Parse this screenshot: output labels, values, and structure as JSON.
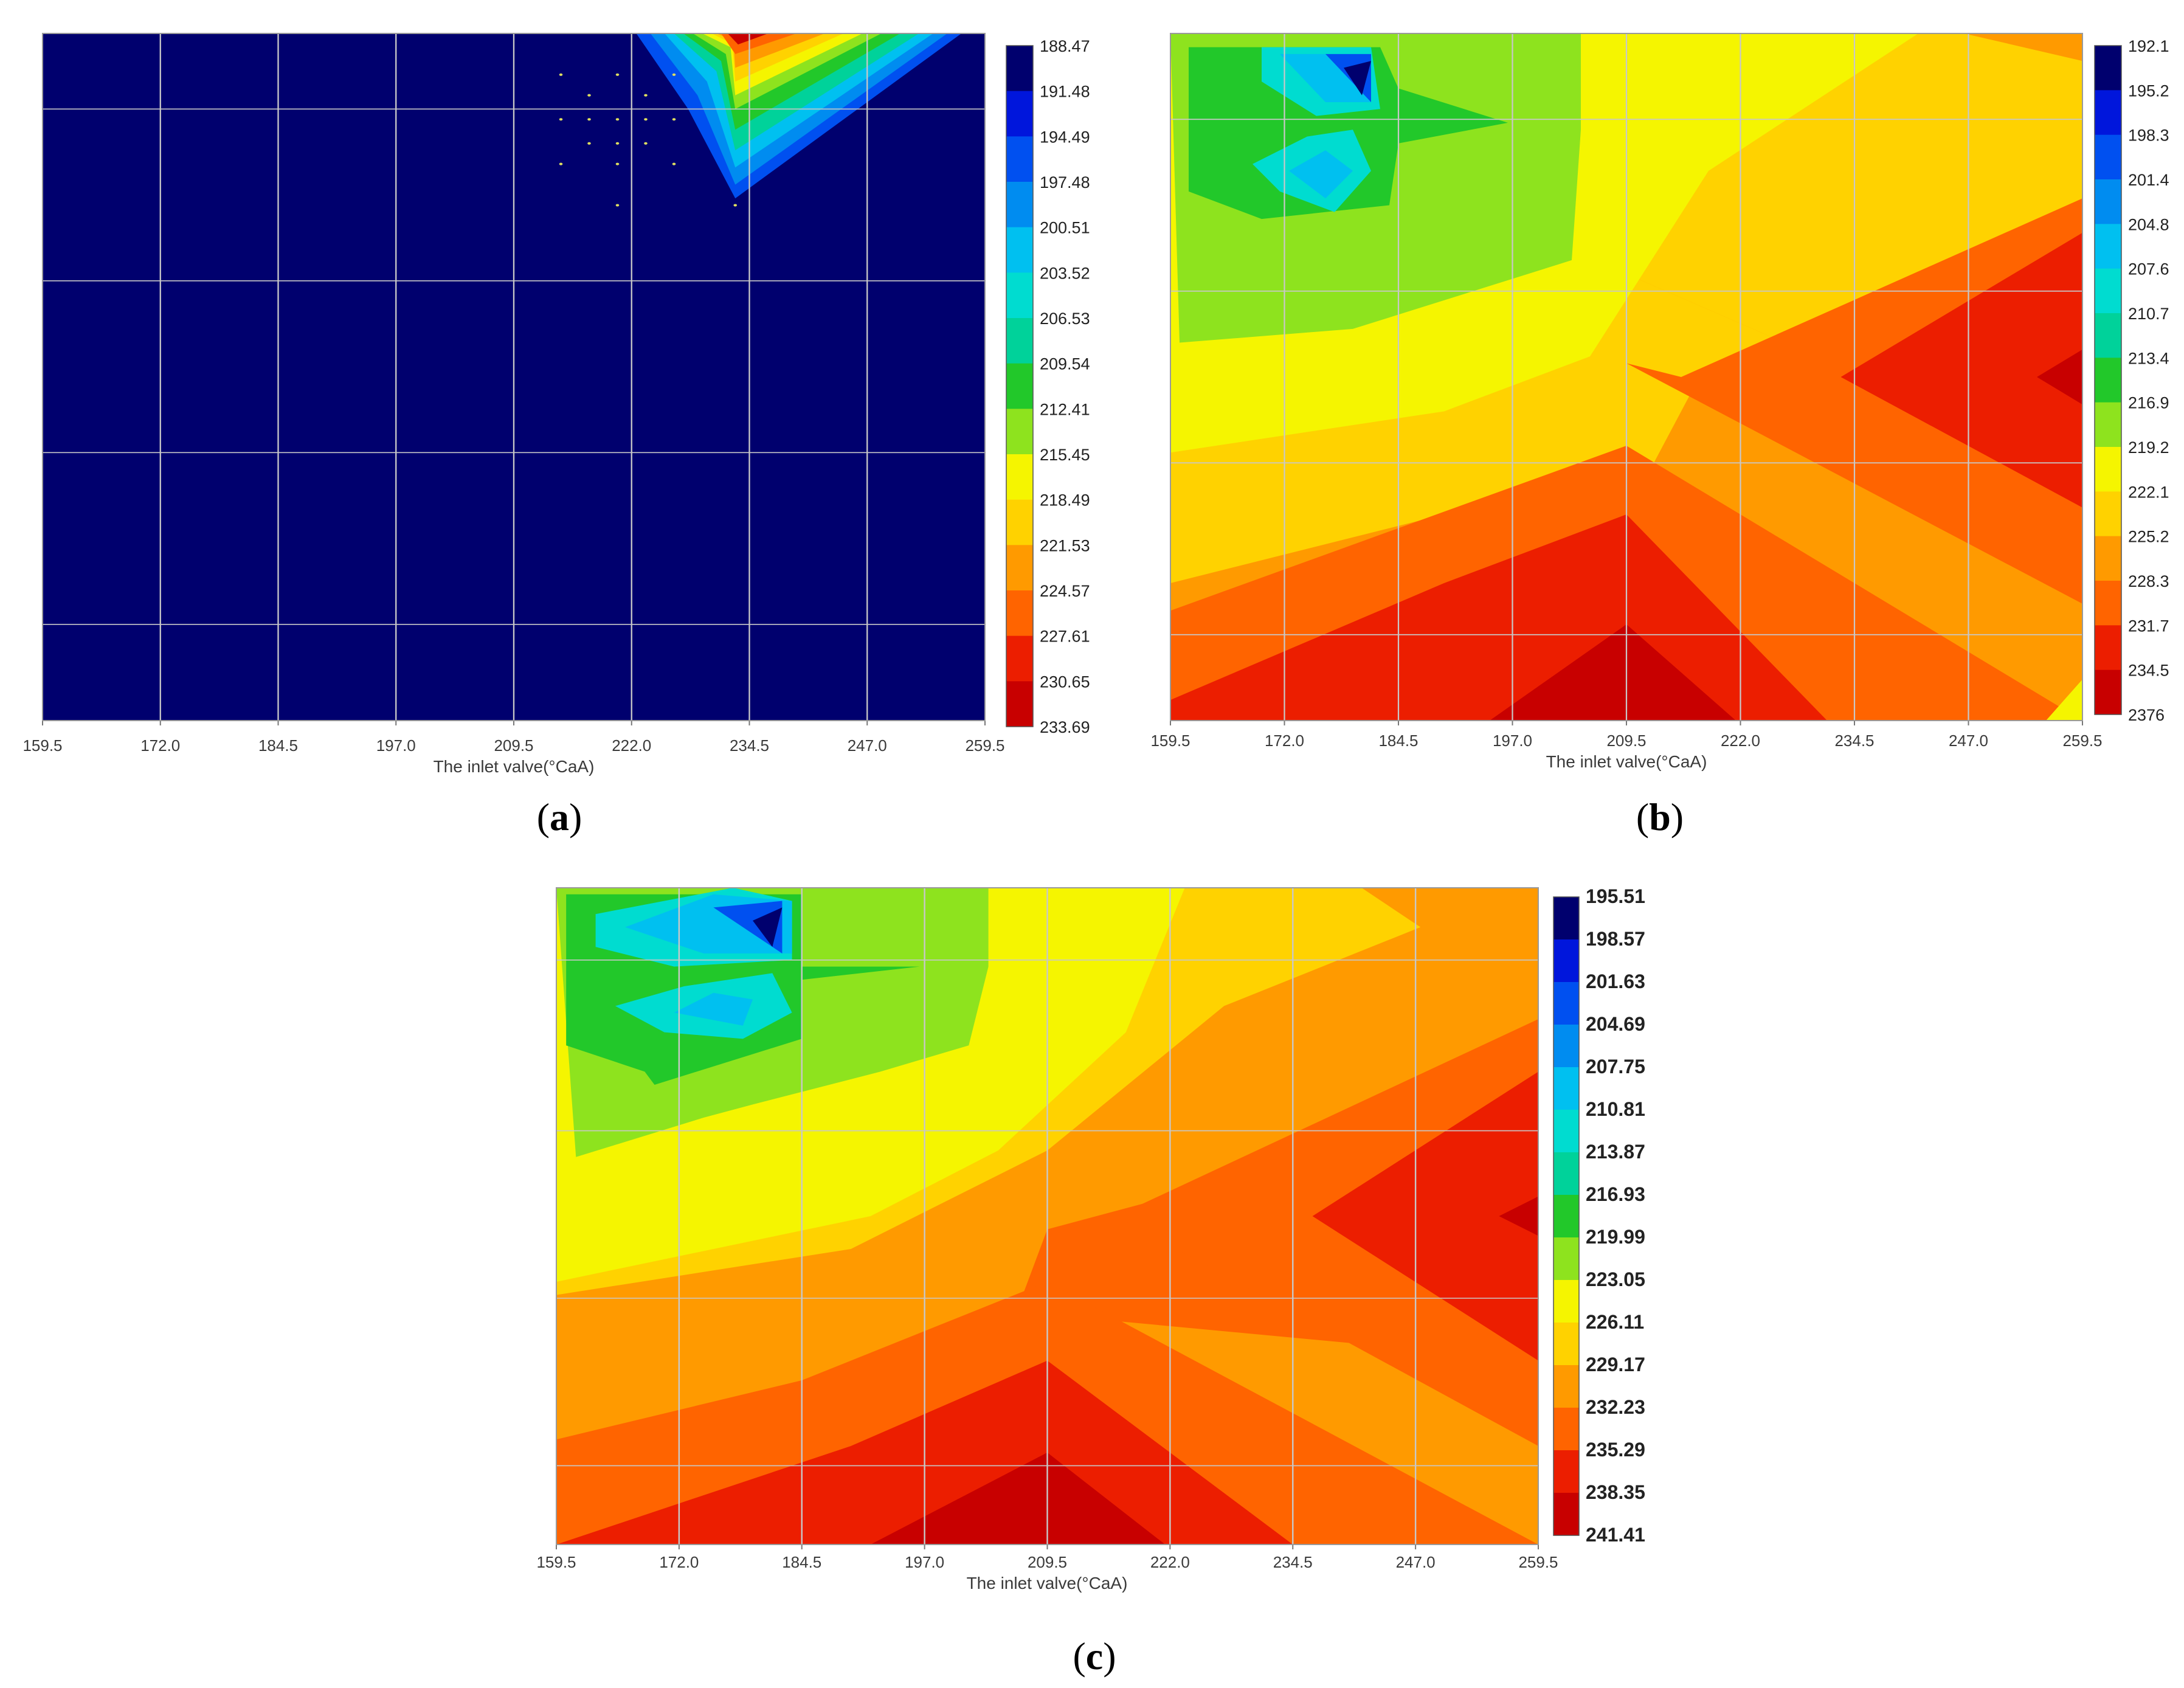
{
  "chart_data": [
    {
      "type": "heatmap",
      "panel": "a",
      "panel_label": "(a)",
      "title": "",
      "xlabel": "The inlet valve(°CaA)",
      "ylabel": "",
      "x_ticks": [
        "159.5",
        "172.0",
        "184.5",
        "197.0",
        "209.5",
        "222.0",
        "234.5",
        "247.0",
        "259.5"
      ],
      "xlim": [
        159.5,
        259.5
      ],
      "grid": true,
      "colorbar_ticks": [
        "188.47",
        "191.48",
        "194.49",
        "197.48",
        "200.51",
        "203.52",
        "206.53",
        "209.54",
        "212.41",
        "215.45",
        "218.49",
        "221.53",
        "224.57",
        "227.61",
        "230.65",
        "233.69"
      ],
      "colors": [
        "#00006e",
        "#0016dc",
        "#0050f0",
        "#008cf0",
        "#00c0f0",
        "#00dcd0",
        "#00d29a",
        "#22c82a",
        "#8ee31e",
        "#f5f500",
        "#ffd200",
        "#ff9a00",
        "#ff6400",
        "#ec1e00",
        "#c80000"
      ],
      "background_color": "#00006e"
    },
    {
      "type": "heatmap",
      "panel": "b",
      "panel_label": "(b)",
      "title": "",
      "xlabel": "The inlet valve(°CaA)",
      "ylabel": "",
      "x_ticks": [
        "159.5",
        "172.0",
        "184.5",
        "197.0",
        "209.5",
        "222.0",
        "234.5",
        "247.0",
        "259.5"
      ],
      "xlim": [
        159.5,
        259.5
      ],
      "grid": true,
      "colorbar_ticks": [
        "192.1",
        "195.2",
        "198.3",
        "201.4",
        "204.8",
        "207.6",
        "210.7",
        "213.4",
        "216.9",
        "219.2",
        "222.1",
        "225.2",
        "228.3",
        "231.7",
        "234.5",
        "2376"
      ],
      "colors": [
        "#00006e",
        "#0016dc",
        "#0050f0",
        "#008cf0",
        "#00c0f0",
        "#00dcd0",
        "#00d29a",
        "#22c82a",
        "#8ee31e",
        "#f5f500",
        "#ffd200",
        "#ff9a00",
        "#ff6400",
        "#ec1e00",
        "#c80000"
      ]
    },
    {
      "type": "heatmap",
      "panel": "c",
      "panel_label": "(c)",
      "title": "",
      "xlabel": "The inlet valve(°CaA)",
      "ylabel": "",
      "x_ticks": [
        "159.5",
        "172.0",
        "184.5",
        "197.0",
        "209.5",
        "222.0",
        "234.5",
        "247.0",
        "259.5"
      ],
      "xlim": [
        159.5,
        259.5
      ],
      "grid": true,
      "colorbar_ticks": [
        "195.51",
        "198.57",
        "201.63",
        "204.69",
        "207.75",
        "210.81",
        "213.87",
        "216.93",
        "219.99",
        "223.05",
        "226.11",
        "229.17",
        "232.23",
        "235.29",
        "238.35",
        "241.41"
      ],
      "colors": [
        "#00006e",
        "#0016dc",
        "#0050f0",
        "#008cf0",
        "#00c0f0",
        "#00dcd0",
        "#00d29a",
        "#22c82a",
        "#8ee31e",
        "#f5f500",
        "#ffd200",
        "#ff9a00",
        "#ff6400",
        "#ec1e00",
        "#c80000"
      ]
    }
  ]
}
